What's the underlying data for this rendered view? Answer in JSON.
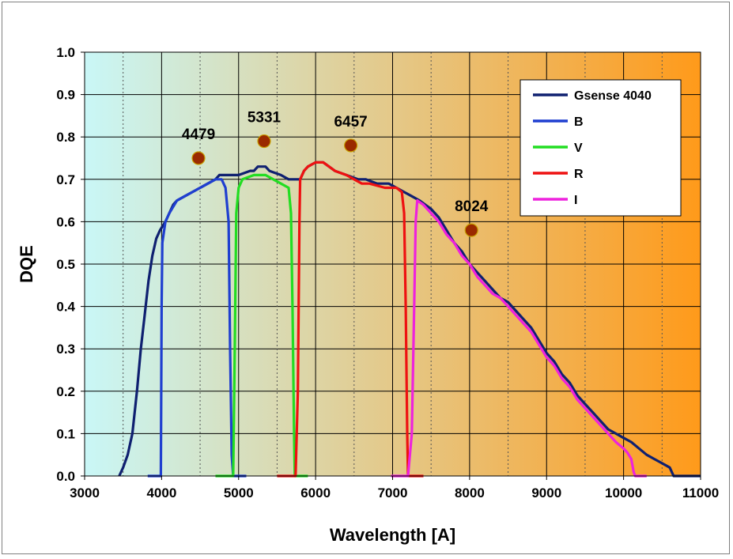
{
  "chart_data": {
    "type": "line",
    "title": "",
    "xlabel": "Wavelength [A]",
    "ylabel": "DQE",
    "xlim": [
      3000,
      11000
    ],
    "ylim": [
      0.0,
      1.0
    ],
    "xticks": [
      3000,
      4000,
      5000,
      6000,
      7000,
      8000,
      9000,
      10000,
      11000
    ],
    "yticks": [
      "0.0",
      "0.1",
      "0.2",
      "0.3",
      "0.4",
      "0.5",
      "0.6",
      "0.7",
      "0.8",
      "0.9",
      "1.0"
    ],
    "grid": true,
    "background_gradient": [
      "#c9f7f7",
      "#ff9a1a"
    ],
    "legend_position": "top-right",
    "series": [
      {
        "name": "Gsense 4040",
        "color": "#0f2070",
        "points": [
          [
            3450,
            0.0
          ],
          [
            3500,
            0.02
          ],
          [
            3560,
            0.05
          ],
          [
            3620,
            0.1
          ],
          [
            3680,
            0.2
          ],
          [
            3730,
            0.3
          ],
          [
            3780,
            0.38
          ],
          [
            3830,
            0.46
          ],
          [
            3880,
            0.52
          ],
          [
            3930,
            0.56
          ],
          [
            3980,
            0.58
          ],
          [
            4050,
            0.6
          ],
          [
            4100,
            0.62
          ],
          [
            4150,
            0.64
          ],
          [
            4200,
            0.65
          ],
          [
            4300,
            0.66
          ],
          [
            4400,
            0.67
          ],
          [
            4500,
            0.68
          ],
          [
            4600,
            0.69
          ],
          [
            4700,
            0.7
          ],
          [
            4750,
            0.71
          ],
          [
            5000,
            0.71
          ],
          [
            5150,
            0.72
          ],
          [
            5200,
            0.72
          ],
          [
            5250,
            0.73
          ],
          [
            5350,
            0.73
          ],
          [
            5400,
            0.72
          ],
          [
            5550,
            0.71
          ],
          [
            5650,
            0.7
          ],
          [
            5800,
            0.7
          ],
          [
            5850,
            0.72
          ],
          [
            5900,
            0.73
          ],
          [
            6000,
            0.74
          ],
          [
            6100,
            0.74
          ],
          [
            6250,
            0.72
          ],
          [
            6400,
            0.71
          ],
          [
            6550,
            0.7
          ],
          [
            6650,
            0.7
          ],
          [
            6800,
            0.69
          ],
          [
            6950,
            0.69
          ],
          [
            7050,
            0.68
          ],
          [
            7150,
            0.67
          ],
          [
            7250,
            0.66
          ],
          [
            7350,
            0.65
          ],
          [
            7500,
            0.63
          ],
          [
            7600,
            0.61
          ],
          [
            7700,
            0.58
          ],
          [
            7800,
            0.55
          ],
          [
            7900,
            0.53
          ],
          [
            8000,
            0.5
          ],
          [
            8100,
            0.48
          ],
          [
            8200,
            0.46
          ],
          [
            8300,
            0.44
          ],
          [
            8400,
            0.42
          ],
          [
            8500,
            0.41
          ],
          [
            8600,
            0.39
          ],
          [
            8700,
            0.37
          ],
          [
            8800,
            0.35
          ],
          [
            8900,
            0.32
          ],
          [
            9000,
            0.29
          ],
          [
            9100,
            0.27
          ],
          [
            9200,
            0.24
          ],
          [
            9300,
            0.22
          ],
          [
            9400,
            0.19
          ],
          [
            9500,
            0.17
          ],
          [
            9600,
            0.15
          ],
          [
            9700,
            0.13
          ],
          [
            9800,
            0.11
          ],
          [
            9900,
            0.1
          ],
          [
            10000,
            0.09
          ],
          [
            10100,
            0.08
          ],
          [
            10200,
            0.065
          ],
          [
            10300,
            0.05
          ],
          [
            10400,
            0.04
          ],
          [
            10500,
            0.03
          ],
          [
            10600,
            0.02
          ],
          [
            10650,
            0.0
          ],
          [
            11000,
            0.0
          ]
        ]
      },
      {
        "name": "B",
        "color": "#1f3fd0",
        "points": [
          [
            3820,
            0.0
          ],
          [
            3990,
            0.0
          ],
          [
            4000,
            0.4
          ],
          [
            4010,
            0.55
          ],
          [
            4050,
            0.6
          ],
          [
            4100,
            0.62
          ],
          [
            4200,
            0.65
          ],
          [
            4300,
            0.66
          ],
          [
            4400,
            0.67
          ],
          [
            4500,
            0.68
          ],
          [
            4600,
            0.69
          ],
          [
            4700,
            0.7
          ],
          [
            4780,
            0.7
          ],
          [
            4830,
            0.68
          ],
          [
            4870,
            0.6
          ],
          [
            4890,
            0.3
          ],
          [
            4910,
            0.05
          ],
          [
            4930,
            0.0
          ],
          [
            5100,
            0.0
          ]
        ]
      },
      {
        "name": "V",
        "color": "#22dd22",
        "points": [
          [
            4700,
            0.0
          ],
          [
            4930,
            0.0
          ],
          [
            4950,
            0.3
          ],
          [
            4970,
            0.62
          ],
          [
            5000,
            0.68
          ],
          [
            5050,
            0.7
          ],
          [
            5200,
            0.71
          ],
          [
            5350,
            0.71
          ],
          [
            5450,
            0.7
          ],
          [
            5550,
            0.69
          ],
          [
            5650,
            0.68
          ],
          [
            5680,
            0.62
          ],
          [
            5700,
            0.4
          ],
          [
            5720,
            0.1
          ],
          [
            5730,
            0.0
          ],
          [
            5900,
            0.0
          ]
        ]
      },
      {
        "name": "R",
        "color": "#ee1111",
        "points": [
          [
            5500,
            0.0
          ],
          [
            5740,
            0.0
          ],
          [
            5770,
            0.2
          ],
          [
            5790,
            0.6
          ],
          [
            5800,
            0.7
          ],
          [
            5850,
            0.72
          ],
          [
            5900,
            0.73
          ],
          [
            6000,
            0.74
          ],
          [
            6100,
            0.74
          ],
          [
            6250,
            0.72
          ],
          [
            6400,
            0.71
          ],
          [
            6500,
            0.7
          ],
          [
            6600,
            0.69
          ],
          [
            6700,
            0.69
          ],
          [
            6900,
            0.68
          ],
          [
            7050,
            0.68
          ],
          [
            7120,
            0.67
          ],
          [
            7150,
            0.62
          ],
          [
            7170,
            0.4
          ],
          [
            7190,
            0.1
          ],
          [
            7200,
            0.0
          ],
          [
            7400,
            0.0
          ]
        ]
      },
      {
        "name": "I",
        "color": "#ee22dd",
        "points": [
          [
            6980,
            0.0
          ],
          [
            7200,
            0.0
          ],
          [
            7250,
            0.1
          ],
          [
            7280,
            0.4
          ],
          [
            7300,
            0.6
          ],
          [
            7320,
            0.65
          ],
          [
            7400,
            0.64
          ],
          [
            7500,
            0.62
          ],
          [
            7600,
            0.6
          ],
          [
            7700,
            0.57
          ],
          [
            7800,
            0.55
          ],
          [
            7900,
            0.52
          ],
          [
            8000,
            0.5
          ],
          [
            8100,
            0.47
          ],
          [
            8200,
            0.45
          ],
          [
            8300,
            0.43
          ],
          [
            8400,
            0.42
          ],
          [
            8500,
            0.4
          ],
          [
            8600,
            0.38
          ],
          [
            8700,
            0.36
          ],
          [
            8800,
            0.34
          ],
          [
            8900,
            0.31
          ],
          [
            9000,
            0.28
          ],
          [
            9100,
            0.26
          ],
          [
            9200,
            0.23
          ],
          [
            9300,
            0.21
          ],
          [
            9400,
            0.18
          ],
          [
            9500,
            0.16
          ],
          [
            9600,
            0.14
          ],
          [
            9700,
            0.12
          ],
          [
            9800,
            0.1
          ],
          [
            9900,
            0.08
          ],
          [
            10000,
            0.065
          ],
          [
            10050,
            0.055
          ],
          [
            10100,
            0.04
          ],
          [
            10130,
            0.01
          ],
          [
            10150,
            0.0
          ],
          [
            10300,
            0.0
          ]
        ]
      }
    ],
    "markers": [
      {
        "label": "4479",
        "x": 4479,
        "y": 0.75
      },
      {
        "label": "5331",
        "x": 5331,
        "y": 0.79
      },
      {
        "label": "6457",
        "x": 6457,
        "y": 0.78
      },
      {
        "label": "8024",
        "x": 8024,
        "y": 0.58
      }
    ],
    "marker_color": "#9a2a00"
  }
}
